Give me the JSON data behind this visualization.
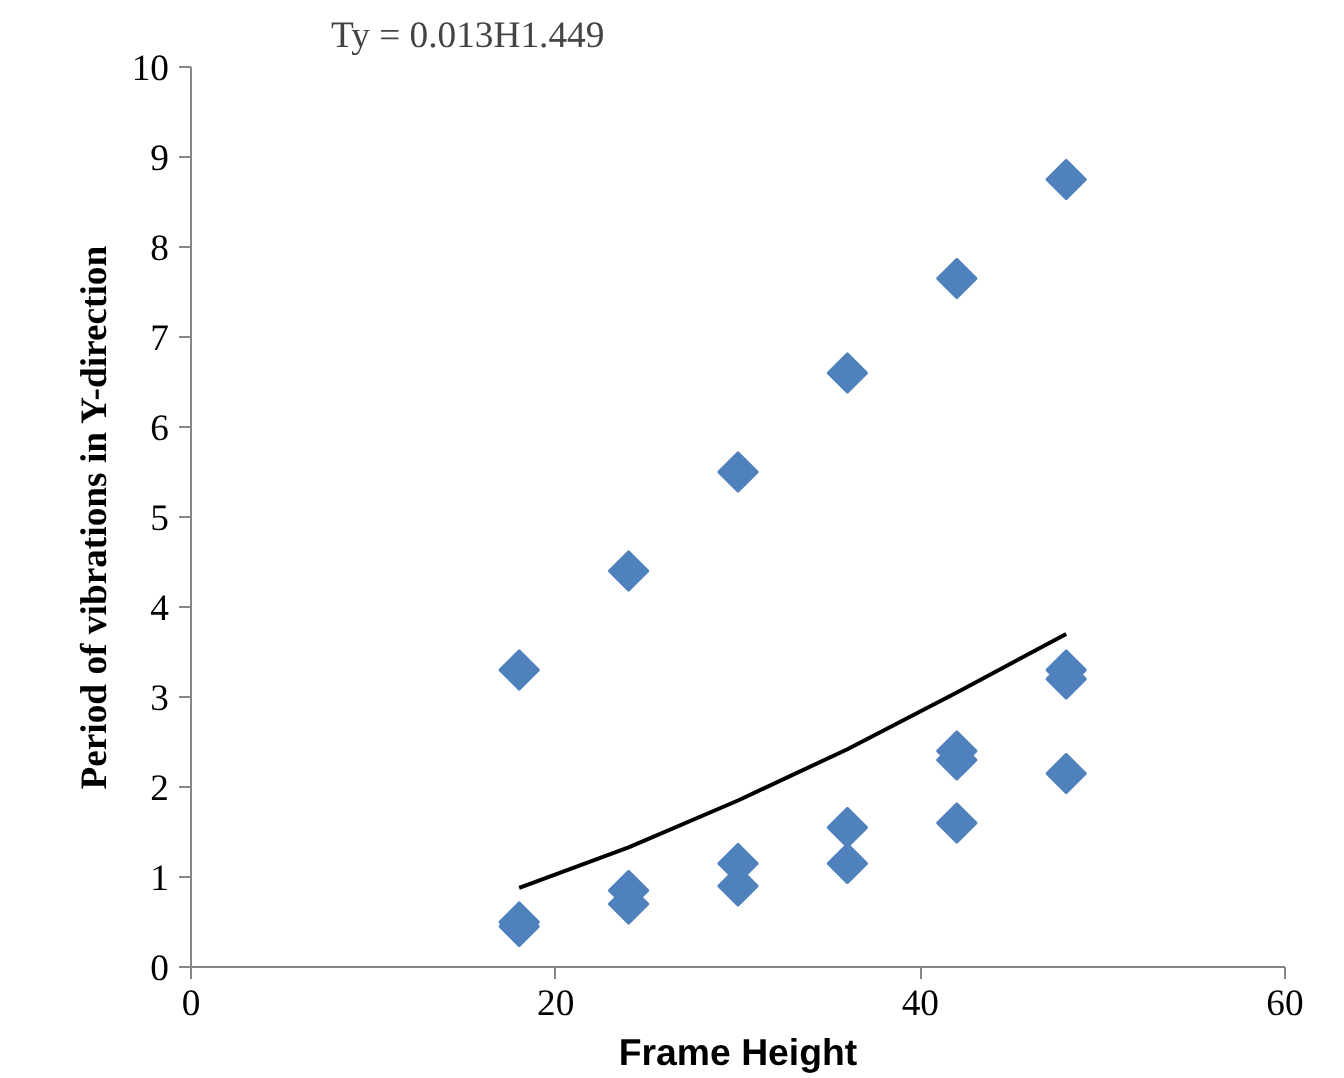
{
  "chart_data": {
    "type": "scatter",
    "xlabel": "Frame Height",
    "ylabel": "Period of vibrations in Y-direction",
    "annotations": [
      "Ty = 0.013H1.449"
    ],
    "xlim": [
      0,
      60
    ],
    "xticks": [
      0,
      20,
      40,
      60
    ],
    "ylim": [
      0,
      10
    ],
    "yticks": [
      0,
      1,
      2,
      3,
      4,
      5,
      6,
      7,
      8,
      9,
      10
    ],
    "grid": false,
    "series": [
      {
        "marker": "diamond",
        "color": "#4f81bd",
        "x": [
          18,
          18,
          18,
          24,
          24,
          24,
          30,
          30,
          30,
          36,
          36,
          36,
          42,
          42,
          42,
          42,
          48,
          48,
          48,
          48
        ],
        "values": [
          3.3,
          0.5,
          0.45,
          4.4,
          0.85,
          0.7,
          5.5,
          1.15,
          0.9,
          6.6,
          1.55,
          1.15,
          7.65,
          2.4,
          2.3,
          1.6,
          8.75,
          3.3,
          3.2,
          2.15
        ]
      },
      {
        "type": "line",
        "color": "#000000",
        "x": [
          18,
          24,
          30,
          36,
          42,
          48
        ],
        "values": [
          0.88,
          1.33,
          1.85,
          2.42,
          3.05,
          3.7
        ]
      }
    ]
  }
}
